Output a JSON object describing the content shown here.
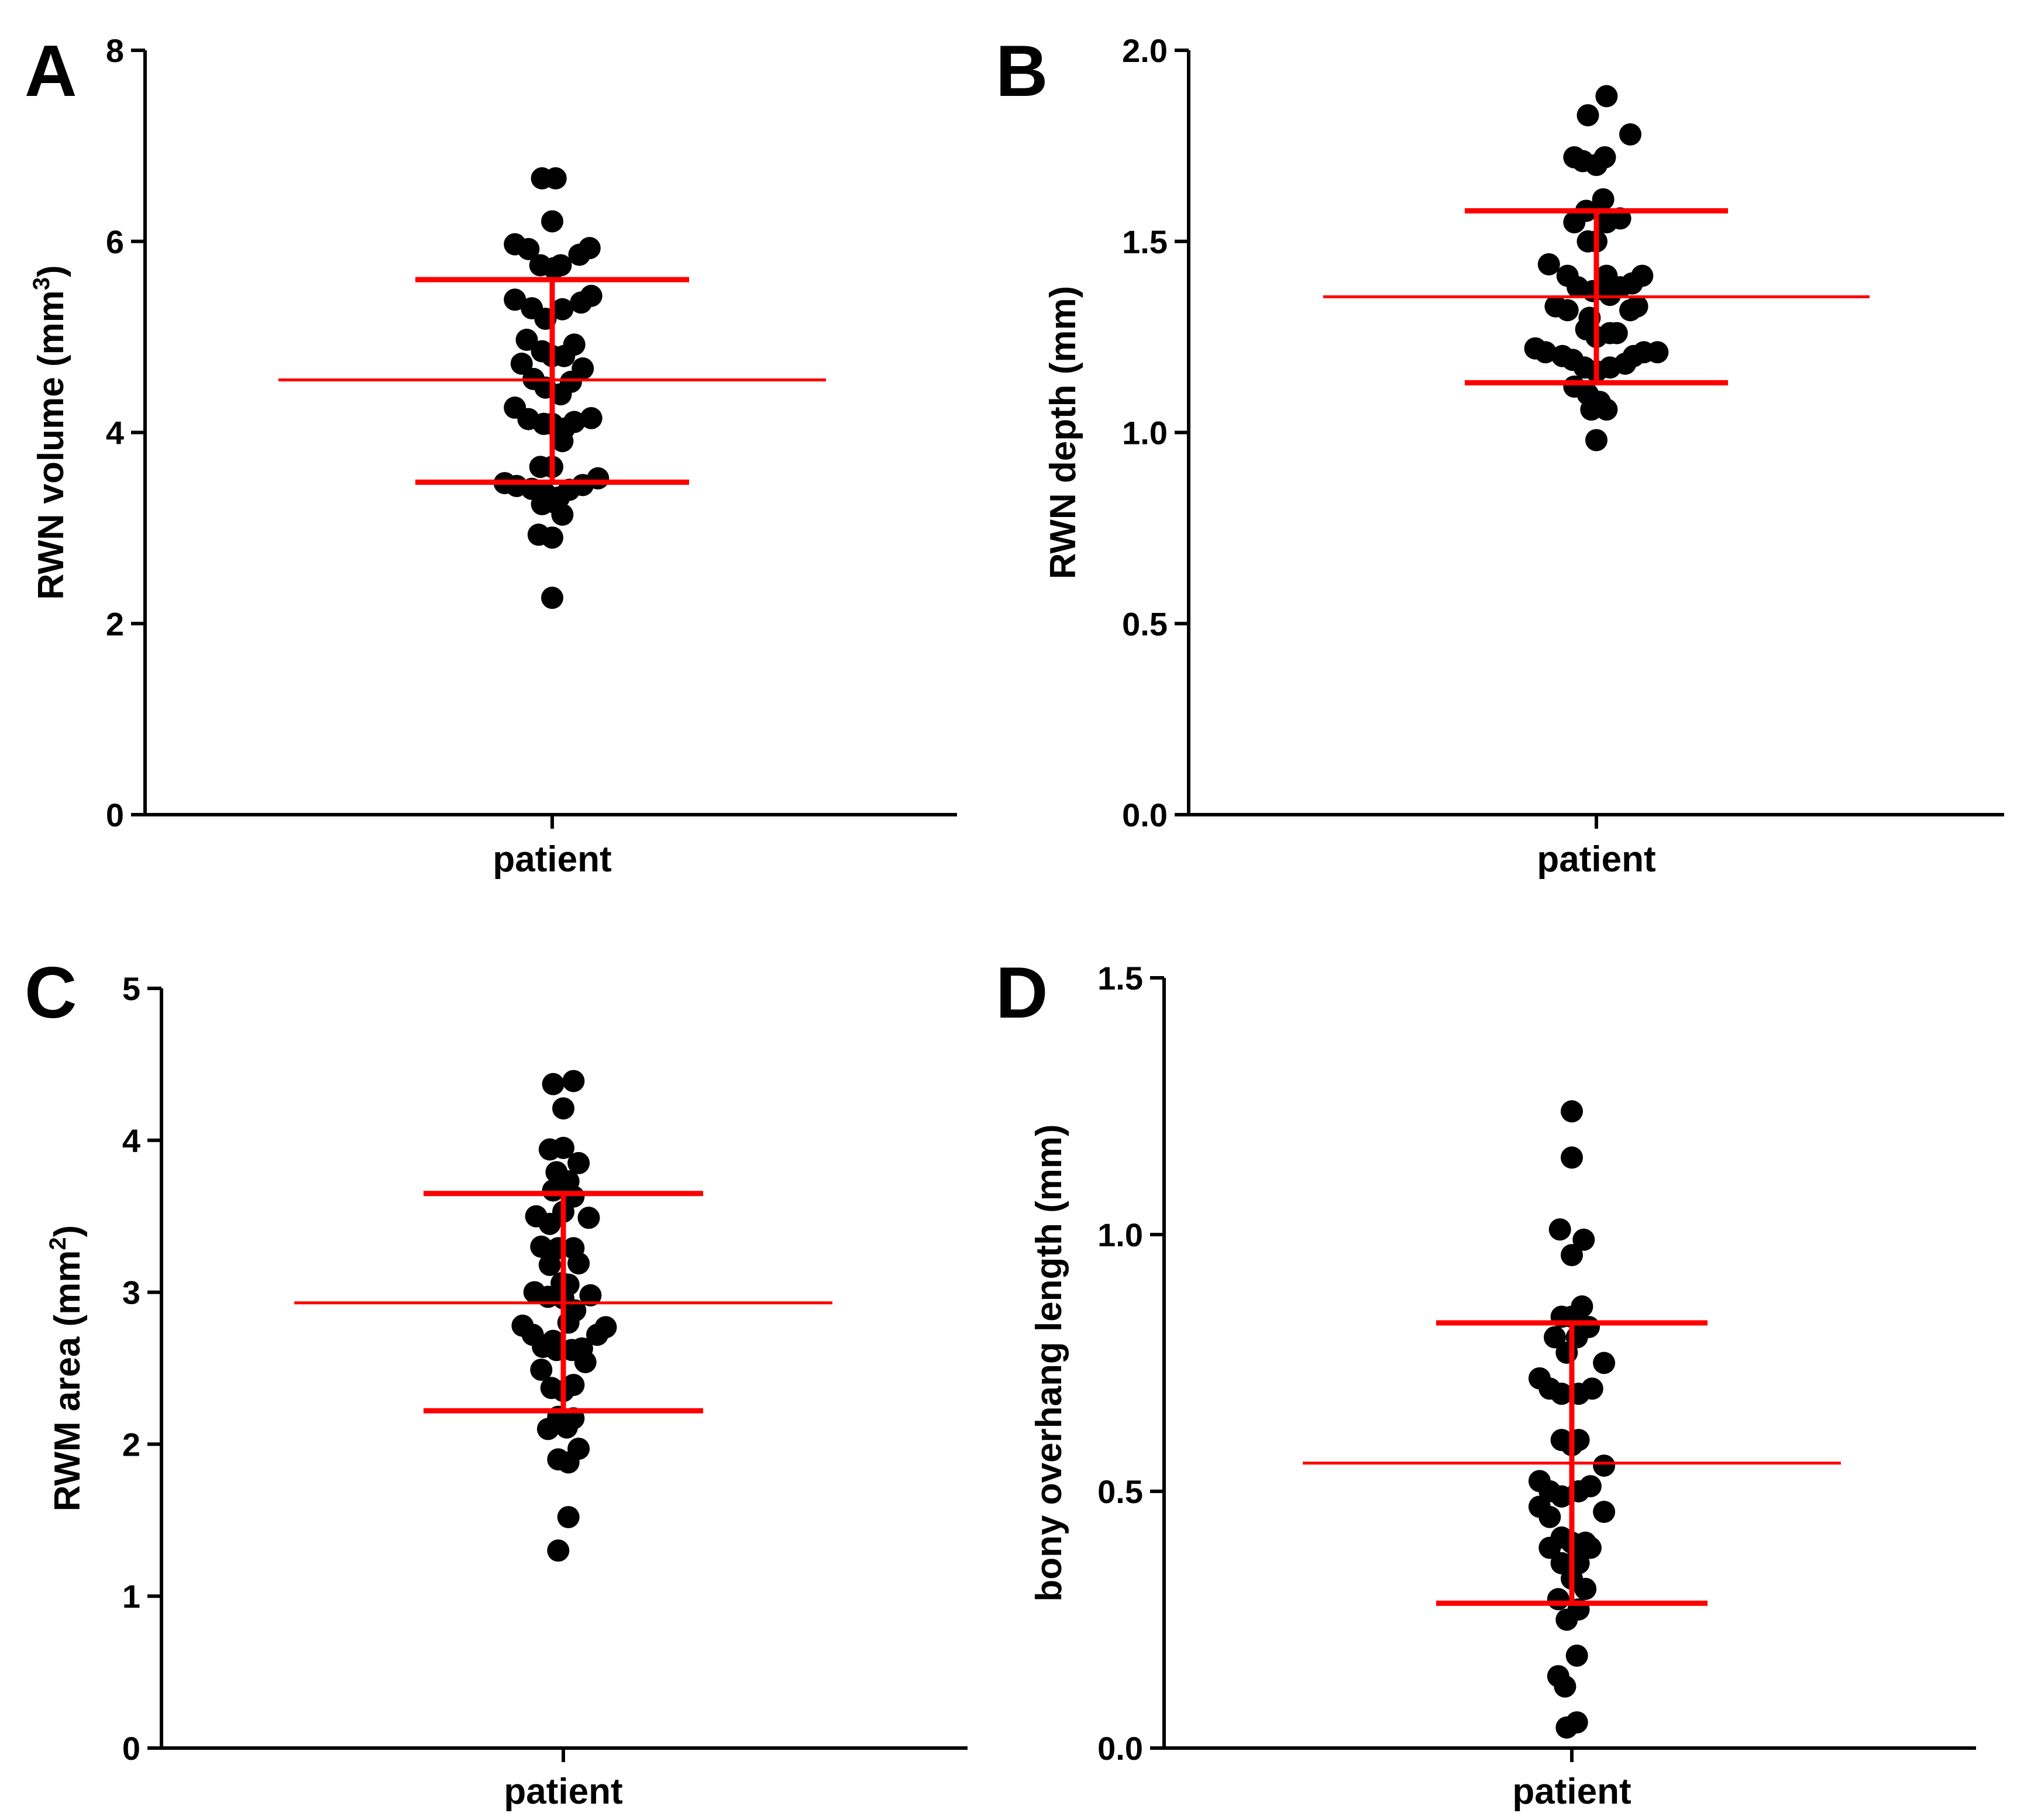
{
  "figure": {
    "panels": [
      {
        "letter": "A",
        "ylabel": "RWN volume (mm",
        "ylabel_sup": "3",
        "ylabel_end": ")",
        "category": "patient",
        "ticks": [
          "0",
          "2",
          "4",
          "6",
          "8"
        ]
      },
      {
        "letter": "B",
        "ylabel": "RWN depth (mm)",
        "ylabel_sup": "",
        "ylabel_end": "",
        "category": "patient",
        "ticks": [
          "0.0",
          "0.5",
          "1.0",
          "1.5",
          "2.0"
        ]
      },
      {
        "letter": "C",
        "ylabel": "RWM area (mm",
        "ylabel_sup": "2",
        "ylabel_end": ")",
        "category": "patient",
        "ticks": [
          "0",
          "1",
          "2",
          "3",
          "4",
          "5"
        ]
      },
      {
        "letter": "D",
        "ylabel": "bony overhang length (mm)",
        "ylabel_sup": "",
        "ylabel_end": "",
        "category": "patient",
        "ticks": [
          "0.0",
          "0.5",
          "1.0",
          "1.5"
        ]
      }
    ]
  },
  "chart_data": [
    {
      "type": "scatter",
      "panel": "A",
      "title": "",
      "xlabel": "patient",
      "ylabel": "RWN volume (mm³)",
      "ylim": [
        0,
        8
      ],
      "yticks": [
        0,
        2,
        4,
        6,
        8
      ],
      "categories": [
        "patient"
      ],
      "mean": 4.55,
      "sd_low": 3.48,
      "sd_high": 5.6,
      "colors": {
        "points": "#000000",
        "summary": "#ff0000"
      },
      "points": [
        [
          -0.06,
          6.66
        ],
        [
          0.02,
          6.66
        ],
        [
          0.0,
          6.21
        ],
        [
          -0.22,
          5.97
        ],
        [
          -0.14,
          5.92
        ],
        [
          0.16,
          5.86
        ],
        [
          0.22,
          5.93
        ],
        [
          -0.07,
          5.75
        ],
        [
          0.01,
          5.72
        ],
        [
          0.05,
          5.75
        ],
        [
          -0.22,
          5.39
        ],
        [
          -0.12,
          5.3
        ],
        [
          -0.04,
          5.19
        ],
        [
          0.06,
          5.29
        ],
        [
          0.17,
          5.36
        ],
        [
          0.23,
          5.43
        ],
        [
          -0.15,
          4.97
        ],
        [
          -0.06,
          4.85
        ],
        [
          0.0,
          4.8
        ],
        [
          0.07,
          4.8
        ],
        [
          0.13,
          4.92
        ],
        [
          -0.18,
          4.72
        ],
        [
          0.18,
          4.67
        ],
        [
          -0.11,
          4.56
        ],
        [
          -0.04,
          4.47
        ],
        [
          0.05,
          4.4
        ],
        [
          0.11,
          4.53
        ],
        [
          -0.22,
          4.26
        ],
        [
          -0.14,
          4.14
        ],
        [
          -0.05,
          4.09
        ],
        [
          0.0,
          4.09
        ],
        [
          0.07,
          4.04
        ],
        [
          0.13,
          4.11
        ],
        [
          0.23,
          4.15
        ],
        [
          0.06,
          3.91
        ],
        [
          -0.07,
          3.64
        ],
        [
          0.0,
          3.64
        ],
        [
          -0.28,
          3.47
        ],
        [
          -0.21,
          3.44
        ],
        [
          -0.12,
          3.41
        ],
        [
          -0.04,
          3.36
        ],
        [
          0.01,
          3.27
        ],
        [
          0.04,
          3.32
        ],
        [
          0.1,
          3.4
        ],
        [
          0.18,
          3.45
        ],
        [
          0.27,
          3.52
        ],
        [
          -0.06,
          3.25
        ],
        [
          0.06,
          3.14
        ],
        [
          -0.08,
          2.93
        ],
        [
          0.0,
          2.9
        ],
        [
          0.0,
          2.27
        ]
      ]
    },
    {
      "type": "scatter",
      "panel": "B",
      "title": "",
      "xlabel": "patient",
      "ylabel": "RWN depth (mm)",
      "ylim": [
        0,
        2.0
      ],
      "yticks": [
        0.0,
        0.5,
        1.0,
        1.5,
        2.0
      ],
      "categories": [
        "patient"
      ],
      "mean": 1.355,
      "sd_low": 1.13,
      "sd_high": 1.58,
      "colors": {
        "points": "#000000",
        "summary": "#ff0000"
      },
      "points": [
        [
          0.06,
          1.88
        ],
        [
          -0.05,
          1.83
        ],
        [
          0.2,
          1.78
        ],
        [
          -0.13,
          1.72
        ],
        [
          -0.08,
          1.71
        ],
        [
          0.0,
          1.7
        ],
        [
          0.05,
          1.72
        ],
        [
          0.04,
          1.61
        ],
        [
          -0.06,
          1.58
        ],
        [
          -0.13,
          1.55
        ],
        [
          0.06,
          1.55
        ],
        [
          0.14,
          1.56
        ],
        [
          -0.05,
          1.5
        ],
        [
          0.0,
          1.5
        ],
        [
          -0.28,
          1.44
        ],
        [
          -0.17,
          1.41
        ],
        [
          0.06,
          1.41
        ],
        [
          0.27,
          1.41
        ],
        [
          -0.11,
          1.38
        ],
        [
          -0.02,
          1.37
        ],
        [
          0.08,
          1.36
        ],
        [
          0.14,
          1.38
        ],
        [
          0.21,
          1.39
        ],
        [
          -0.24,
          1.33
        ],
        [
          -0.17,
          1.32
        ],
        [
          -0.04,
          1.3
        ],
        [
          0.2,
          1.32
        ],
        [
          0.24,
          1.33
        ],
        [
          -0.06,
          1.27
        ],
        [
          0.0,
          1.25
        ],
        [
          0.08,
          1.26
        ],
        [
          0.12,
          1.26
        ],
        [
          -0.36,
          1.22
        ],
        [
          -0.3,
          1.21
        ],
        [
          -0.2,
          1.2
        ],
        [
          -0.14,
          1.19
        ],
        [
          -0.07,
          1.17
        ],
        [
          0.0,
          1.16
        ],
        [
          0.08,
          1.17
        ],
        [
          0.17,
          1.18
        ],
        [
          0.22,
          1.2
        ],
        [
          0.28,
          1.21
        ],
        [
          0.36,
          1.21
        ],
        [
          -0.13,
          1.12
        ],
        [
          -0.05,
          1.1
        ],
        [
          0.02,
          1.08
        ],
        [
          0.06,
          1.06
        ],
        [
          -0.03,
          1.06
        ],
        [
          0.0,
          0.98
        ]
      ]
    },
    {
      "type": "scatter",
      "panel": "C",
      "title": "",
      "xlabel": "patient",
      "ylabel": "RWM area (mm²)",
      "ylim": [
        0,
        5
      ],
      "yticks": [
        0,
        1,
        2,
        3,
        4,
        5
      ],
      "categories": [
        "patient"
      ],
      "mean": 2.93,
      "sd_low": 2.22,
      "sd_high": 3.65,
      "colors": {
        "points": "#000000",
        "summary": "#ff0000"
      },
      "points": [
        [
          -0.06,
          4.37
        ],
        [
          0.06,
          4.39
        ],
        [
          0.0,
          4.21
        ],
        [
          -0.08,
          3.94
        ],
        [
          0.0,
          3.95
        ],
        [
          0.09,
          3.85
        ],
        [
          -0.04,
          3.79
        ],
        [
          0.03,
          3.73
        ],
        [
          -0.06,
          3.67
        ],
        [
          0.06,
          3.63
        ],
        [
          -0.16,
          3.5
        ],
        [
          -0.08,
          3.45
        ],
        [
          0.0,
          3.53
        ],
        [
          0.15,
          3.49
        ],
        [
          -0.13,
          3.3
        ],
        [
          -0.03,
          3.29
        ],
        [
          0.06,
          3.29
        ],
        [
          0.09,
          3.19
        ],
        [
          -0.08,
          3.18
        ],
        [
          -0.01,
          3.06
        ],
        [
          0.03,
          3.05
        ],
        [
          -0.17,
          3.0
        ],
        [
          -0.09,
          2.97
        ],
        [
          0.0,
          2.96
        ],
        [
          0.07,
          2.88
        ],
        [
          0.16,
          2.98
        ],
        [
          -0.24,
          2.78
        ],
        [
          -0.18,
          2.72
        ],
        [
          -0.06,
          2.68
        ],
        [
          0.03,
          2.8
        ],
        [
          0.2,
          2.72
        ],
        [
          0.25,
          2.77
        ],
        [
          -0.12,
          2.64
        ],
        [
          -0.04,
          2.62
        ],
        [
          0.05,
          2.62
        ],
        [
          0.11,
          2.63
        ],
        [
          -0.13,
          2.49
        ],
        [
          0.13,
          2.54
        ],
        [
          -0.07,
          2.37
        ],
        [
          0.0,
          2.35
        ],
        [
          0.06,
          2.39
        ],
        [
          -0.09,
          2.1
        ],
        [
          -0.03,
          2.18
        ],
        [
          0.02,
          2.11
        ],
        [
          0.06,
          2.17
        ],
        [
          -0.03,
          1.9
        ],
        [
          0.03,
          1.88
        ],
        [
          0.09,
          1.97
        ],
        [
          0.03,
          1.52
        ],
        [
          -0.03,
          1.3
        ]
      ]
    },
    {
      "type": "scatter",
      "panel": "D",
      "title": "",
      "xlabel": "patient",
      "ylabel": "bony overhang length (mm)",
      "ylim": [
        0,
        1.5
      ],
      "yticks": [
        0.0,
        0.5,
        1.0,
        1.5
      ],
      "categories": [
        "patient"
      ],
      "mean": 0.555,
      "sd_low": 0.282,
      "sd_high": 0.828,
      "colors": {
        "points": "#000000",
        "summary": "#ff0000"
      },
      "points": [
        [
          0.0,
          1.24
        ],
        [
          0.0,
          1.15
        ],
        [
          -0.07,
          1.01
        ],
        [
          0.07,
          0.99
        ],
        [
          0.0,
          0.96
        ],
        [
          -0.06,
          0.84
        ],
        [
          0.06,
          0.86
        ],
        [
          0.0,
          0.84
        ],
        [
          0.1,
          0.82
        ],
        [
          -0.1,
          0.8
        ],
        [
          0.03,
          0.8
        ],
        [
          -0.03,
          0.77
        ],
        [
          0.19,
          0.75
        ],
        [
          -0.19,
          0.72
        ],
        [
          -0.13,
          0.7
        ],
        [
          -0.06,
          0.69
        ],
        [
          0.04,
          0.69
        ],
        [
          0.12,
          0.7
        ],
        [
          -0.06,
          0.6
        ],
        [
          0.04,
          0.6
        ],
        [
          0.0,
          0.59
        ],
        [
          0.19,
          0.55
        ],
        [
          -0.19,
          0.52
        ],
        [
          -0.13,
          0.5
        ],
        [
          -0.06,
          0.49
        ],
        [
          0.04,
          0.5
        ],
        [
          0.11,
          0.51
        ],
        [
          -0.19,
          0.47
        ],
        [
          -0.13,
          0.45
        ],
        [
          0.19,
          0.46
        ],
        [
          -0.13,
          0.39
        ],
        [
          -0.06,
          0.41
        ],
        [
          0.0,
          0.4
        ],
        [
          0.04,
          0.38
        ],
        [
          0.08,
          0.4
        ],
        [
          0.11,
          0.39
        ],
        [
          -0.06,
          0.36
        ],
        [
          0.04,
          0.36
        ],
        [
          0.0,
          0.33
        ],
        [
          0.08,
          0.31
        ],
        [
          -0.08,
          0.29
        ],
        [
          0.04,
          0.27
        ],
        [
          -0.03,
          0.25
        ],
        [
          0.03,
          0.18
        ],
        [
          -0.08,
          0.14
        ],
        [
          -0.04,
          0.12
        ],
        [
          -0.03,
          0.04
        ],
        [
          0.03,
          0.05
        ]
      ]
    }
  ]
}
